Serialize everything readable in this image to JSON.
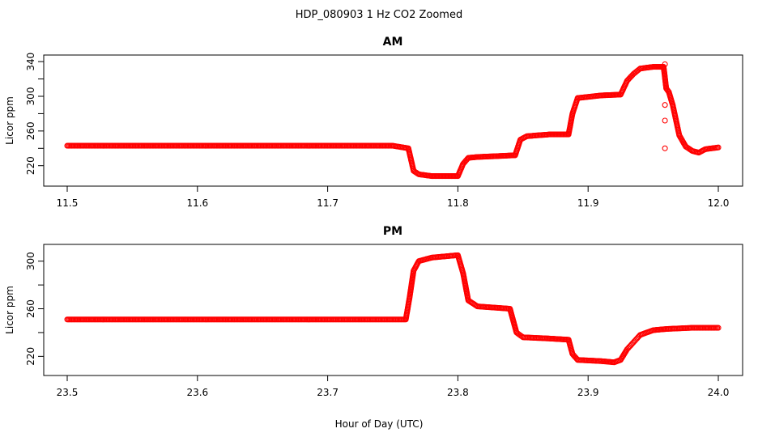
{
  "figure": {
    "title": "HDP_080903  1 Hz CO2 Zoomed",
    "xlabel": "Hour of Day (UTC)"
  },
  "chart_data": [
    {
      "type": "scatter",
      "title": "AM",
      "xlabel": "Hour of Day (UTC)",
      "ylabel": "Licor ppm",
      "xlim": [
        11.5,
        12.0
      ],
      "ylim": [
        202,
        342
      ],
      "xticks": [
        11.5,
        11.6,
        11.7,
        11.8,
        11.9,
        12.0
      ],
      "xtick_labels": [
        "11.5",
        "11.6",
        "11.7",
        "11.8",
        "11.9",
        "12.0"
      ],
      "yticks": [
        220,
        240,
        260,
        280,
        300,
        320,
        340
      ],
      "ytick_labels": [
        "220",
        "",
        "260",
        "",
        "300",
        "",
        "340"
      ],
      "marker": "open circle",
      "color": "#ff0000",
      "grid": false,
      "series": [
        {
          "x": [
            11.5,
            11.55,
            11.6,
            11.65,
            11.7,
            11.75,
            11.762,
            11.766,
            11.77,
            11.78,
            11.79,
            11.8,
            11.804,
            11.808,
            11.815,
            11.83,
            11.844,
            11.848,
            11.853,
            11.87,
            11.885,
            11.888,
            11.892,
            11.91,
            11.925,
            11.93,
            11.935,
            11.94,
            11.95,
            11.958,
            11.96,
            11.962,
            11.965,
            11.97,
            11.975,
            11.98,
            11.985,
            11.99,
            12.0
          ],
          "y": [
            243,
            243,
            243,
            243,
            243,
            243,
            240,
            214,
            210,
            208,
            208,
            208,
            222,
            229,
            230,
            231,
            232,
            250,
            254,
            256,
            256,
            280,
            298,
            301,
            302,
            318,
            326,
            332,
            334,
            334,
            309,
            305,
            290,
            255,
            242,
            237,
            235,
            239,
            241
          ]
        },
        {
          "x": [
            11.959,
            11.959,
            11.959,
            11.959
          ],
          "y": [
            337,
            290,
            272,
            240
          ]
        }
      ]
    },
    {
      "type": "scatter",
      "title": "PM",
      "xlabel": "Hour of Day (UTC)",
      "ylabel": "Licor ppm",
      "xlim": [
        23.5,
        24.0
      ],
      "ylim": [
        208,
        310
      ],
      "xticks": [
        23.5,
        23.6,
        23.7,
        23.8,
        23.9,
        24.0
      ],
      "xtick_labels": [
        "23.5",
        "23.6",
        "23.7",
        "23.8",
        "23.9",
        "24.0"
      ],
      "yticks": [
        220,
        240,
        260,
        280,
        300
      ],
      "ytick_labels": [
        "220",
        "",
        "260",
        "",
        "300"
      ],
      "marker": "open circle",
      "color": "#ff0000",
      "grid": false,
      "series": [
        {
          "x": [
            23.5,
            23.55,
            23.6,
            23.65,
            23.7,
            23.76,
            23.763,
            23.766,
            23.77,
            23.78,
            23.8,
            23.804,
            23.808,
            23.815,
            23.84,
            23.845,
            23.85,
            23.87,
            23.885,
            23.888,
            23.892,
            23.91,
            23.92,
            23.925,
            23.93,
            23.94,
            23.95,
            23.96,
            23.98,
            24.0
          ],
          "y": [
            251,
            251,
            251,
            251,
            251,
            251,
            270,
            292,
            300,
            303,
            305,
            290,
            267,
            262,
            260,
            240,
            236,
            235,
            234,
            222,
            217,
            216,
            215,
            217,
            226,
            238,
            242,
            243,
            244,
            244
          ]
        }
      ]
    }
  ]
}
